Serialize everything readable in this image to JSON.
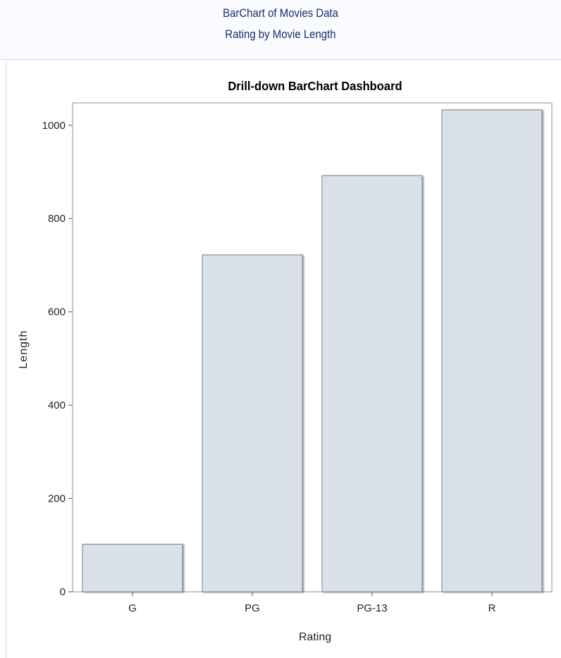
{
  "header": {
    "line1": "BarChart of Movies Data",
    "line2": "Rating by Movie Length"
  },
  "chart_data": {
    "type": "bar",
    "title": "Drill-down BarChart Dashboard",
    "xlabel": "Rating",
    "ylabel": "Length",
    "categories": [
      "G",
      "PG",
      "PG-13",
      "R"
    ],
    "values": [
      102,
      722,
      892,
      1033
    ],
    "ylim": [
      0,
      1048
    ],
    "yticks": [
      0,
      200,
      400,
      600,
      800,
      1000
    ],
    "grid": false,
    "bar_fill": "#dae1eb",
    "bar_stroke": "#7a7e86"
  }
}
